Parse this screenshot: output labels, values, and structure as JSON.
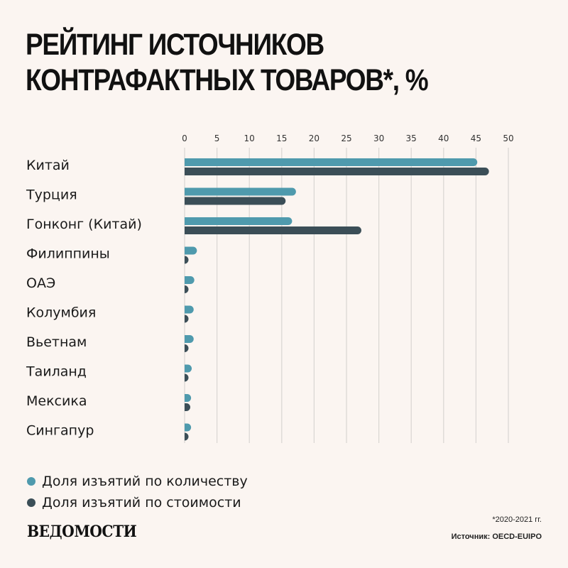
{
  "header": {
    "title_line1": "РЕЙТИНГ ИСТОЧНИКОВ",
    "title_line2": "КОНТРАФАКТНЫХ ТОВАРОВ*, %"
  },
  "colors": {
    "quantity": "#4f9aad",
    "value": "#3b4e57",
    "grid": "#d9d6d3"
  },
  "chart_data": {
    "type": "bar",
    "orientation": "horizontal",
    "title": "РЕЙТИНГ ИСТОЧНИКОВ КОНТРАФАКТНЫХ ТОВАРОВ*, %",
    "categories": [
      "Китай",
      "Турция",
      "Гонконг (Китай)",
      "Филиппины",
      "ОАЭ",
      "Колумбия",
      "Вьетнам",
      "Таиланд",
      "Мексика",
      "Сингапур"
    ],
    "series": [
      {
        "name": "Доля изъятий по количеству",
        "values": [
          45.2,
          17.2,
          16.6,
          1.9,
          1.5,
          1.4,
          1.4,
          1.1,
          1.0,
          1.0
        ]
      },
      {
        "name": "Доля изъятий по стоимости",
        "values": [
          47.0,
          15.6,
          27.3,
          0.3,
          0.6,
          0.1,
          0.3,
          0.3,
          0.0,
          0.3
        ]
      }
    ],
    "xlim": [
      0,
      50
    ],
    "xticks": [
      0,
      5,
      10,
      15,
      20,
      25,
      30,
      35,
      40,
      45,
      50
    ],
    "grid": true,
    "legend_position": "bottom-left"
  },
  "legend": {
    "items": [
      "Доля изъятий по количеству",
      "Доля изъятий по стоимости"
    ]
  },
  "footer": {
    "logo": "ВЕДОМОСТИ",
    "footnote": "*2020-2021 гг.",
    "source": "Источник: OECD-EUIPO"
  }
}
